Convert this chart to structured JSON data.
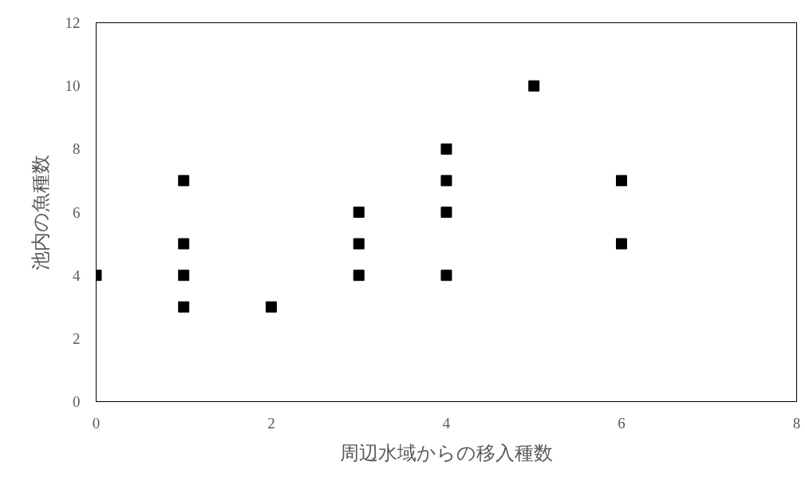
{
  "chart_data": {
    "type": "scatter",
    "xlabel": "周辺水域からの移入種数",
    "ylabel": "池内の魚種数",
    "x": [
      0,
      1,
      1,
      1,
      1,
      2,
      3,
      3,
      3,
      4,
      4,
      4,
      4,
      5,
      6,
      6
    ],
    "values": [
      4,
      7,
      5,
      4,
      3,
      3,
      6,
      5,
      4,
      8,
      7,
      6,
      4,
      10,
      7,
      5
    ],
    "color": "#000000",
    "marker": "square",
    "grid": false,
    "xlim": [
      0,
      8
    ],
    "xticks": [
      0,
      2,
      4,
      6,
      8
    ],
    "ylim": [
      0,
      12
    ],
    "yticks": [
      0,
      2,
      4,
      6,
      8,
      10,
      12
    ]
  }
}
